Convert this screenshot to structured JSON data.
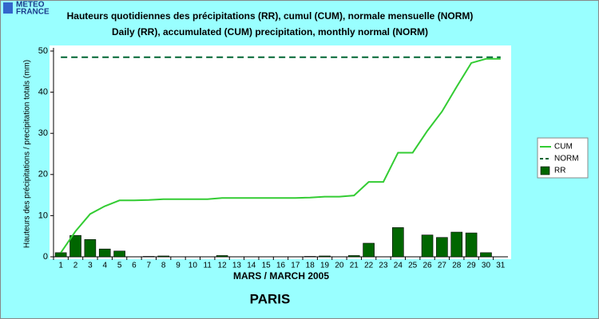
{
  "logo": [
    "METEO",
    "FRANCE"
  ],
  "chart_data": {
    "type": "combo",
    "title": "Hauteurs quotidiennes des précipitations (RR), cumul (CUM), normale mensuelle (NORM)",
    "subtitle": "Daily (RR), accumulated (CUM) precipitation, monthly normal (NORM)",
    "y_label": "Hauteurs des précipitations / precipitation totals (mm)",
    "x_label": "MARS / MARCH 2005",
    "annotation": "PARIS",
    "categories": [
      "1",
      "2",
      "3",
      "4",
      "5",
      "6",
      "7",
      "8",
      "9",
      "10",
      "11",
      "12",
      "13",
      "14",
      "15",
      "16",
      "17",
      "18",
      "19",
      "20",
      "21",
      "22",
      "23",
      "24",
      "25",
      "26",
      "27",
      "28",
      "29",
      "30",
      "31"
    ],
    "ylim": [
      0,
      50
    ],
    "yticks": [
      0,
      10,
      20,
      30,
      40,
      50
    ],
    "legend": "right",
    "series": [
      {
        "name": "CUM",
        "type": "line",
        "color": "#33cc33",
        "values": [
          1.0,
          6.2,
          10.4,
          12.3,
          13.7,
          13.7,
          13.8,
          14.0,
          14.0,
          14.0,
          14.0,
          14.3,
          14.3,
          14.3,
          14.3,
          14.3,
          14.3,
          14.4,
          14.6,
          14.6,
          14.9,
          18.2,
          18.2,
          25.3,
          25.3,
          30.6,
          35.3,
          41.3,
          47.1,
          48.1,
          48.1
        ]
      },
      {
        "name": "NORM",
        "type": "hline",
        "color": "#006633",
        "value": 48.5
      },
      {
        "name": "RR",
        "type": "bar",
        "color": "#006600",
        "values": [
          1.0,
          5.2,
          4.2,
          1.9,
          1.4,
          0,
          0.1,
          0.2,
          0,
          0,
          0,
          0.3,
          0,
          0,
          0,
          0,
          0,
          0.1,
          0.2,
          0,
          0.3,
          3.3,
          0,
          7.1,
          0,
          5.3,
          4.7,
          6.0,
          5.8,
          1.0,
          0
        ]
      }
    ]
  }
}
